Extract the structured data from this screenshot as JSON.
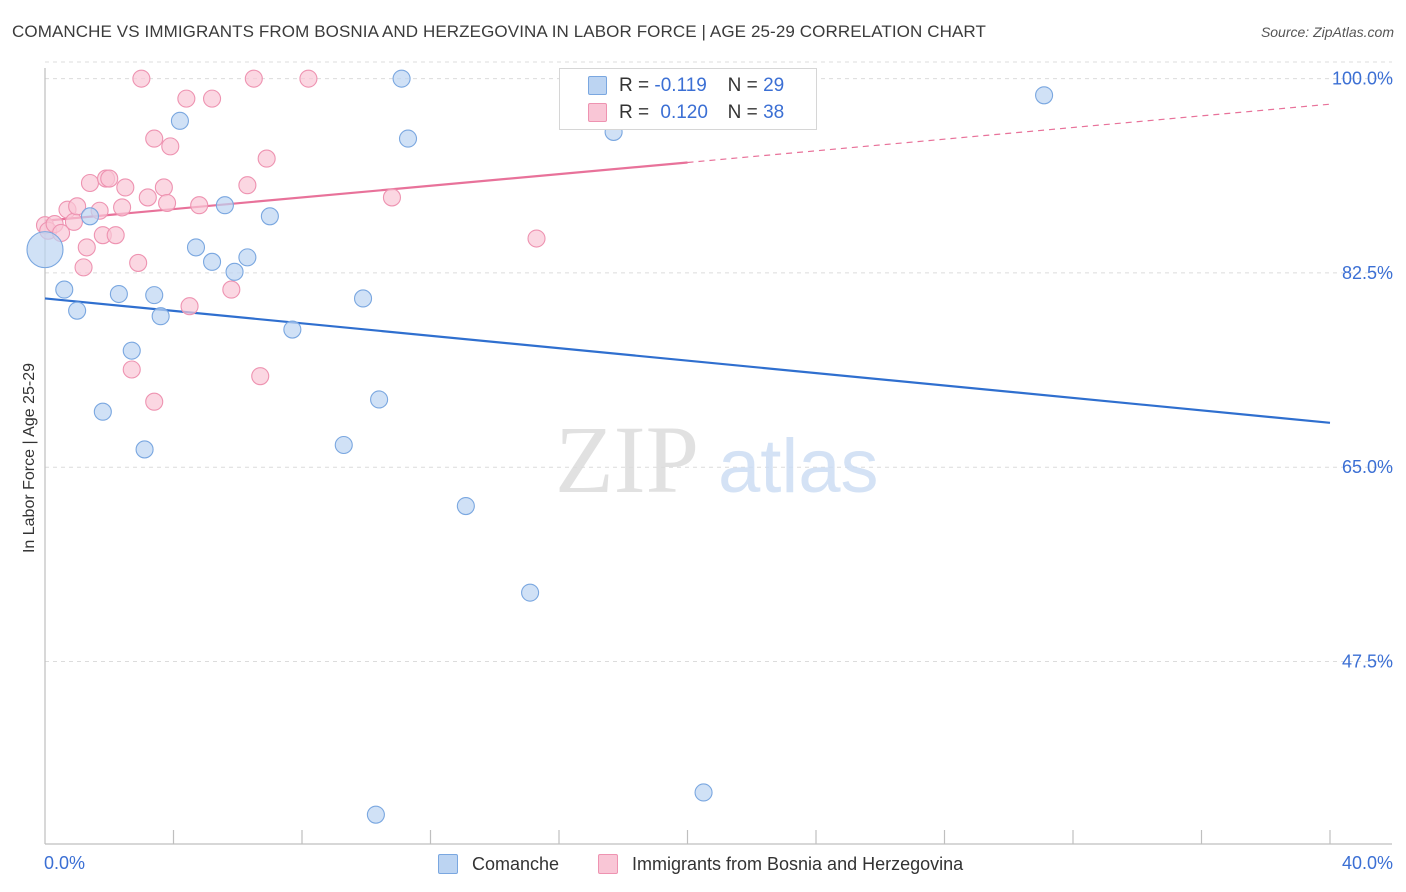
{
  "title": "COMANCHE VS IMMIGRANTS FROM BOSNIA AND HERZEGOVINA IN LABOR FORCE | AGE 25-29 CORRELATION CHART",
  "source": "Source: ZipAtlas.com",
  "watermark": {
    "zip": "ZIP",
    "atlas": "atlas"
  },
  "legend": {
    "r_label": "R =",
    "n_label": "N =",
    "series1": {
      "r": "-0.119",
      "n": "29"
    },
    "series2": {
      "r": "0.120",
      "n": "38"
    }
  },
  "chart_data": {
    "type": "scatter",
    "title": "COMANCHE VS IMMIGRANTS FROM BOSNIA AND HERZEGOVINA IN LABOR FORCE | AGE 25-29 CORRELATION CHART",
    "xlabel": "",
    "ylabel": "In Labor Force | Age 25-29",
    "xlim": [
      0,
      40
    ],
    "ylim": [
      32.5,
      101.5
    ],
    "x_tick_labels": [
      "0.0%",
      "40.0%"
    ],
    "y_ticks": [
      47.5,
      65.0,
      82.5,
      100.0
    ],
    "y_tick_labels": [
      "47.5%",
      "65.0%",
      "82.5%",
      "100.0%"
    ],
    "colors": {
      "comanche_fill": "#bcd4f2",
      "comanche_edge": "#7aa7e0",
      "comanche_line": "#2f6fcf",
      "bosnia_fill": "#f9c6d6",
      "bosnia_edge": "#ee93b1",
      "bosnia_line": "#e8729a",
      "tick_label": "#3b6fd4"
    },
    "series": [
      {
        "name": "Comanche",
        "r": -0.119,
        "n": 29,
        "trend": {
          "x1": 0.0,
          "y1": 80.2,
          "x2": 40.0,
          "y2": 69.0,
          "solid_to": 40.0
        },
        "points": [
          [
            0.0,
            84.6
          ],
          [
            0.6,
            81.0
          ],
          [
            1.0,
            79.1
          ],
          [
            1.4,
            87.6
          ],
          [
            1.8,
            70.0
          ],
          [
            2.3,
            80.6
          ],
          [
            2.7,
            75.5
          ],
          [
            3.1,
            66.6
          ],
          [
            3.4,
            80.5
          ],
          [
            3.6,
            78.6
          ],
          [
            4.2,
            96.2
          ],
          [
            4.7,
            84.8
          ],
          [
            5.2,
            83.5
          ],
          [
            5.6,
            88.6
          ],
          [
            5.9,
            82.6
          ],
          [
            6.3,
            83.9
          ],
          [
            7.0,
            87.6
          ],
          [
            7.7,
            77.4
          ],
          [
            9.3,
            67.0
          ],
          [
            9.9,
            80.2
          ],
          [
            10.4,
            71.1
          ],
          [
            11.1,
            100.0
          ],
          [
            11.3,
            94.6
          ],
          [
            13.1,
            61.5
          ],
          [
            15.1,
            53.7
          ],
          [
            17.7,
            95.2
          ],
          [
            20.5,
            35.7
          ],
          [
            31.1,
            98.5
          ],
          [
            10.3,
            33.7
          ]
        ]
      },
      {
        "name": "Immigrants from Bosnia and Herzegovina",
        "r": 0.12,
        "n": 38,
        "trend": {
          "x1": 0.0,
          "y1": 87.2,
          "x2": 40.0,
          "y2": 97.7,
          "solid_to": 20.0
        },
        "points": [
          [
            0.0,
            86.8
          ],
          [
            0.1,
            86.3
          ],
          [
            0.3,
            86.9
          ],
          [
            0.5,
            86.1
          ],
          [
            0.7,
            88.2
          ],
          [
            0.9,
            87.1
          ],
          [
            1.0,
            88.5
          ],
          [
            1.2,
            83.0
          ],
          [
            1.3,
            84.8
          ],
          [
            1.4,
            90.6
          ],
          [
            1.7,
            88.1
          ],
          [
            1.8,
            85.9
          ],
          [
            1.9,
            91.0
          ],
          [
            2.0,
            91.0
          ],
          [
            2.2,
            85.9
          ],
          [
            2.4,
            88.4
          ],
          [
            2.5,
            90.2
          ],
          [
            2.7,
            73.8
          ],
          [
            2.9,
            83.4
          ],
          [
            3.0,
            100.0
          ],
          [
            3.2,
            89.3
          ],
          [
            3.4,
            70.9
          ],
          [
            3.4,
            94.6
          ],
          [
            3.7,
            90.2
          ],
          [
            3.8,
            88.8
          ],
          [
            3.9,
            93.9
          ],
          [
            4.4,
            98.2
          ],
          [
            4.5,
            79.5
          ],
          [
            4.8,
            88.6
          ],
          [
            5.2,
            98.2
          ],
          [
            5.8,
            81.0
          ],
          [
            6.3,
            90.4
          ],
          [
            6.5,
            100.0
          ],
          [
            6.7,
            73.2
          ],
          [
            6.9,
            92.8
          ],
          [
            8.2,
            100.0
          ],
          [
            10.8,
            89.3
          ],
          [
            15.3,
            85.6
          ]
        ]
      }
    ]
  }
}
